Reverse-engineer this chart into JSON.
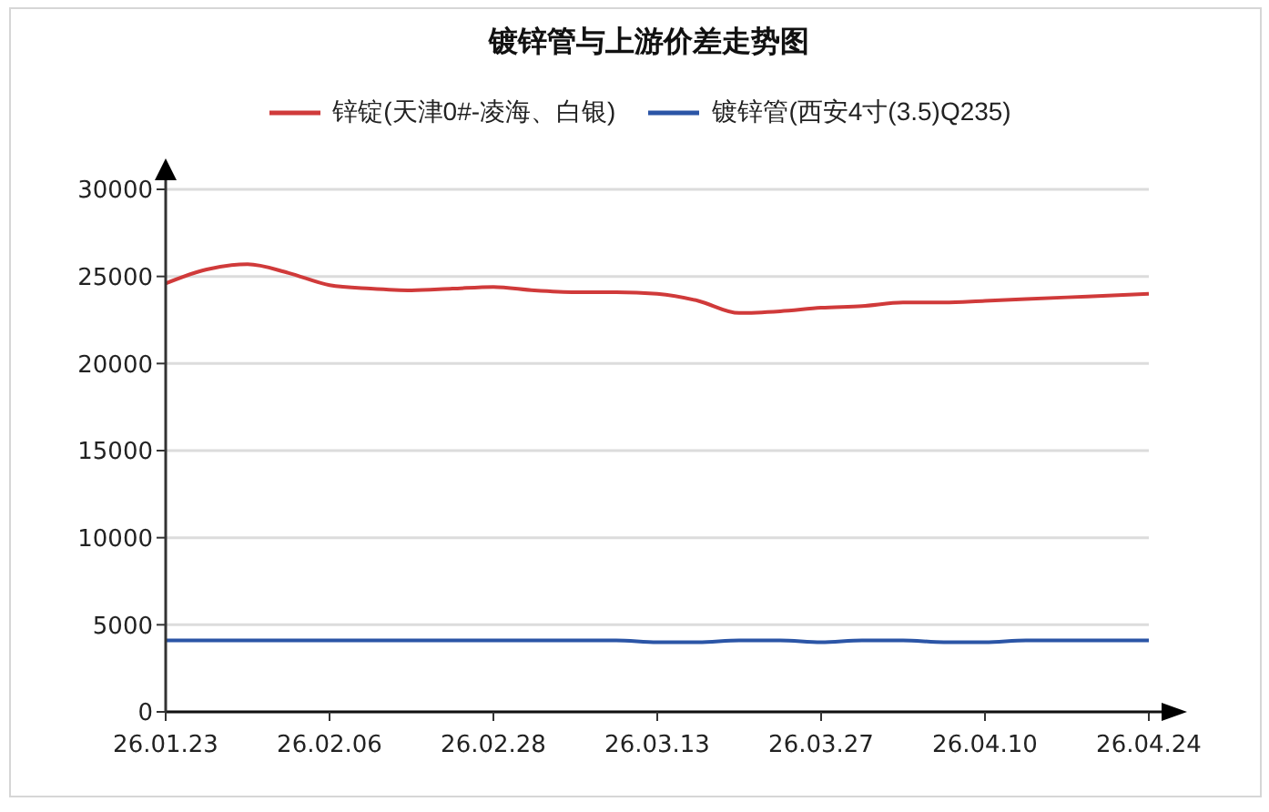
{
  "chart_data": {
    "type": "line",
    "title": "镀锌管与上游价差走势图",
    "categories": [
      "26.01.23",
      null,
      null,
      null,
      "26.02.06",
      null,
      null,
      null,
      "26.02.28",
      null,
      null,
      null,
      "26.03.13",
      null,
      null,
      null,
      "26.03.27",
      null,
      null,
      null,
      "26.04.10",
      null,
      null,
      null,
      "26.04.24"
    ],
    "series": [
      {
        "name": "锌锭(天津0#-凌海、白银)",
        "color": "#d03a3a",
        "values": [
          24600,
          25400,
          25700,
          25200,
          24500,
          24300,
          24200,
          24300,
          24400,
          24200,
          24100,
          24100,
          24000,
          23600,
          22900,
          23000,
          23200,
          23300,
          23500,
          23500,
          23600,
          23700,
          23800,
          23900,
          24000
        ]
      },
      {
        "name": "镀锌管(西安4寸(3.5)Q235)",
        "color": "#2b55a6",
        "values": [
          4100,
          4100,
          4100,
          4100,
          4100,
          4100,
          4100,
          4100,
          4100,
          4100,
          4100,
          4100,
          4000,
          4000,
          4100,
          4100,
          4000,
          4100,
          4100,
          4000,
          4000,
          4100,
          4100,
          4100,
          4100
        ]
      }
    ],
    "ylim": [
      0,
      30000
    ],
    "yticks": [
      0,
      5000,
      10000,
      15000,
      20000,
      25000,
      30000
    ],
    "grid": "y",
    "legend": "top"
  }
}
